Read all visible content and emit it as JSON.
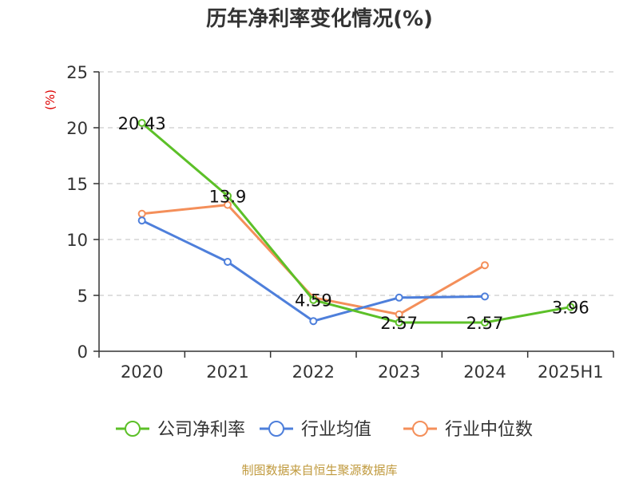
{
  "chart_data": {
    "type": "line",
    "title": "历年净利率变化情况(%)",
    "unit_label": "(%)",
    "categories": [
      "2020",
      "2021",
      "2022",
      "2023",
      "2024",
      "2025H1"
    ],
    "ylim": [
      0,
      25
    ],
    "yticks": [
      0,
      5,
      10,
      15,
      20,
      25
    ],
    "grid": true,
    "legend_position": "bottom",
    "series": [
      {
        "name": "公司净利率",
        "color": "#5cc028",
        "values": [
          20.43,
          13.9,
          4.59,
          2.57,
          2.57,
          3.96
        ],
        "labels": [
          "20.43",
          "13.9",
          "4.59",
          "2.57",
          "2.57",
          "3.96"
        ]
      },
      {
        "name": "行业均值",
        "color": "#4e7fdb",
        "values": [
          11.7,
          8.0,
          2.7,
          4.8,
          4.9,
          null
        ]
      },
      {
        "name": "行业中位数",
        "color": "#f48f5a",
        "values": [
          12.3,
          13.1,
          4.8,
          3.3,
          7.7,
          null
        ]
      }
    ]
  },
  "source": "制图数据来自恒生聚源数据库",
  "colors": {
    "axis": "#333333",
    "grid": "#cccccc",
    "unit": "#dd0000",
    "source": "#c09a3e"
  }
}
